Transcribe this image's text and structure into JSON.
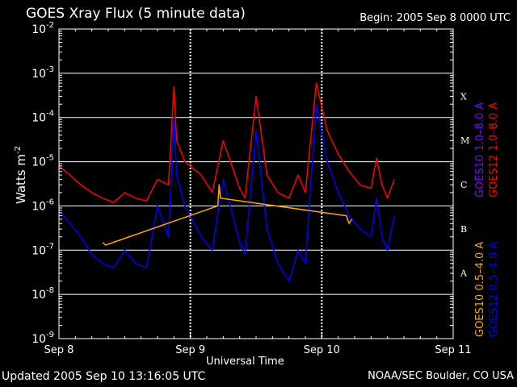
{
  "header": {
    "title": "GOES Xray Flux (5 minute data)",
    "begin": "Begin:  2005 Sep 8 0000 UTC"
  },
  "footer": {
    "updated": "Updated 2005 Sep 10 13:16:05 UTC",
    "credit": "NOAA/SEC Boulder, CO USA"
  },
  "colors": {
    "background": "#000000",
    "goes12_long": "#ff0000",
    "goes12_short": "#0000ff",
    "goes10_long": "#7f00ff",
    "goes10_short": "#ffa500",
    "grid": "#ffffff"
  },
  "chart_data": {
    "type": "line",
    "title": "GOES Xray Flux (5 minute data)",
    "xlabel": "Universal Time",
    "ylabel": "Watts m-2",
    "ylabel_main": "Watts m",
    "ylabel_exp": "-2",
    "y_scale": "log",
    "ylim": [
      1e-09,
      0.01
    ],
    "y_ticks": [
      {
        "value": 0.01,
        "base": "10",
        "exp": "-2"
      },
      {
        "value": 0.001,
        "base": "10",
        "exp": "-3"
      },
      {
        "value": 0.0001,
        "base": "10",
        "exp": "-4"
      },
      {
        "value": 1e-05,
        "base": "10",
        "exp": "-5"
      },
      {
        "value": 1e-06,
        "base": "10",
        "exp": "-6"
      },
      {
        "value": 1e-07,
        "base": "10",
        "exp": "-7"
      },
      {
        "value": 1e-08,
        "base": "10",
        "exp": "-8"
      },
      {
        "value": 1e-09,
        "base": "10",
        "exp": "-9"
      }
    ],
    "xlim": [
      "2005-09-08 00:00",
      "2005-09-11 00:00"
    ],
    "x_ticks": [
      {
        "value": "2005-09-08",
        "label": "Sep 8"
      },
      {
        "value": "2005-09-09",
        "label": "Sep 9"
      },
      {
        "value": "2005-09-10",
        "label": "Sep 10"
      },
      {
        "value": "2005-09-11",
        "label": "Sep 11"
      }
    ],
    "flare_classes": [
      {
        "label": "X",
        "value": 0.0001
      },
      {
        "label": "M",
        "value": 1e-05
      },
      {
        "label": "C",
        "value": 1e-06
      },
      {
        "label": "B",
        "value": 1e-07
      },
      {
        "label": "A",
        "value": 1e-08
      }
    ],
    "grid": true,
    "legend": [
      {
        "name": "GOES10 1.0–8.0 A",
        "color": "#7f00ff"
      },
      {
        "name": "GOES12 1.0–8.0 A",
        "color": "#ff0000"
      },
      {
        "name": "GOES10 0.5–4.0 A",
        "color": "#ffa500"
      },
      {
        "name": "GOES12 0.5–4.0 A",
        "color": "#0000ff"
      }
    ],
    "series": [
      {
        "name": "GOES12 1.0–8.0 A",
        "x": [
          "2005-09-08 00:00",
          "2005-09-08 02:00",
          "2005-09-08 04:00",
          "2005-09-08 06:00",
          "2005-09-08 08:00",
          "2005-09-08 10:00",
          "2005-09-08 12:00",
          "2005-09-08 14:00",
          "2005-09-08 16:00",
          "2005-09-08 18:00",
          "2005-09-08 20:00",
          "2005-09-08 21:00",
          "2005-09-08 21:30",
          "2005-09-08 23:00",
          "2005-09-09 02:00",
          "2005-09-09 04:00",
          "2005-09-09 06:00",
          "2005-09-09 09:00",
          "2005-09-09 10:00",
          "2005-09-09 12:00",
          "2005-09-09 14:00",
          "2005-09-09 16:00",
          "2005-09-09 18:00",
          "2005-09-09 19:40",
          "2005-09-09 21:00",
          "2005-09-09 23:00",
          "2005-09-10 01:00",
          "2005-09-10 03:00",
          "2005-09-10 05:00",
          "2005-09-10 07:00",
          "2005-09-10 09:00",
          "2005-09-10 10:00",
          "2005-09-10 11:00",
          "2005-09-10 12:00",
          "2005-09-10 13:15"
        ],
        "values": [
          8e-06,
          5e-06,
          3e-06,
          2e-06,
          1.5e-06,
          1.2e-06,
          2e-06,
          1.5e-06,
          1.3e-06,
          4e-06,
          3e-06,
          0.0005,
          3e-05,
          1e-05,
          5e-06,
          2e-06,
          3e-05,
          2.5e-06,
          1.5e-06,
          0.0003,
          5e-06,
          2e-06,
          1.5e-06,
          5e-06,
          2e-06,
          0.0006,
          5e-05,
          1.5e-05,
          6e-06,
          3e-06,
          2.5e-06,
          1.2e-05,
          3e-06,
          1.5e-06,
          4e-06
        ]
      },
      {
        "name": "GOES12 0.5–4.0 A",
        "x": [
          "2005-09-08 00:00",
          "2005-09-08 02:00",
          "2005-09-08 04:00",
          "2005-09-08 06:00",
          "2005-09-08 08:00",
          "2005-09-08 10:00",
          "2005-09-08 12:00",
          "2005-09-08 14:00",
          "2005-09-08 16:00",
          "2005-09-08 18:00",
          "2005-09-08 20:00",
          "2005-09-08 21:00",
          "2005-09-08 21:30",
          "2005-09-08 23:00",
          "2005-09-09 02:00",
          "2005-09-09 04:00",
          "2005-09-09 06:00",
          "2005-09-09 09:00",
          "2005-09-09 10:00",
          "2005-09-09 12:00",
          "2005-09-09 14:00",
          "2005-09-09 16:00",
          "2005-09-09 18:00",
          "2005-09-09 19:40",
          "2005-09-09 21:00",
          "2005-09-09 23:00",
          "2005-09-10 01:00",
          "2005-09-10 03:00",
          "2005-09-10 05:00",
          "2005-09-10 07:00",
          "2005-09-10 09:00",
          "2005-09-10 10:00",
          "2005-09-10 11:00",
          "2005-09-10 12:00",
          "2005-09-10 13:15"
        ],
        "values": [
          8e-07,
          4e-07,
          2e-07,
          8e-08,
          5e-08,
          4e-08,
          1e-07,
          5e-08,
          4e-08,
          1e-06,
          2e-07,
          0.0001,
          5e-06,
          1e-06,
          2e-07,
          1e-07,
          4e-06,
          1.5e-07,
          8e-08,
          5e-05,
          3e-07,
          5e-08,
          2e-08,
          1e-07,
          5e-08,
          0.0002,
          1e-05,
          2e-06,
          6e-07,
          3e-07,
          2e-07,
          1.5e-06,
          2e-07,
          1e-07,
          6e-07
        ]
      },
      {
        "name": "GOES10 0.5–4.0 A",
        "x": [
          "2005-09-08 08:00",
          "2005-09-08 08:30",
          "2005-09-09 05:00",
          "2005-09-09 05:15",
          "2005-09-09 05:30",
          "2005-09-10 04:30",
          "2005-09-10 05:00",
          "2005-09-10 05:30"
        ],
        "values": [
          1.5e-07,
          1.3e-07,
          1e-06,
          3e-06,
          1.5e-06,
          6e-07,
          4e-07,
          5e-07
        ]
      }
    ]
  }
}
